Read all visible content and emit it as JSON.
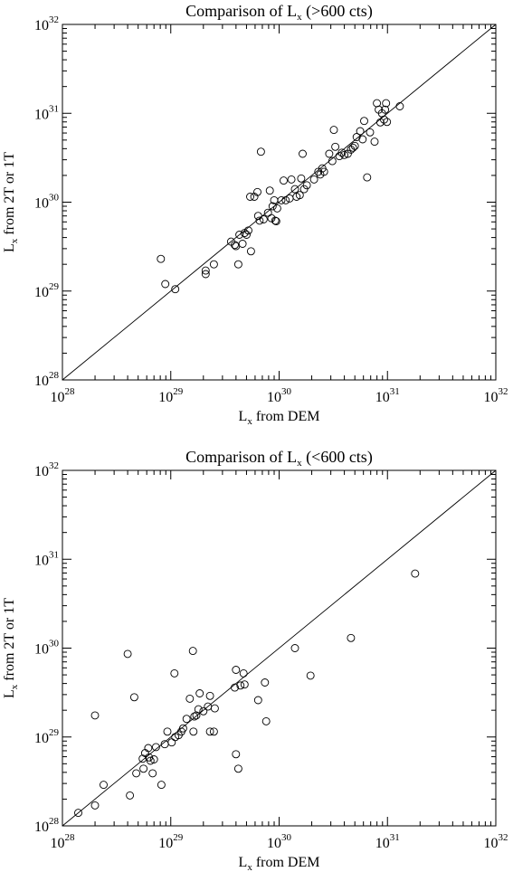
{
  "chart_data": [
    {
      "type": "scatter",
      "title": {
        "base": "Comparison of L",
        "sub": "x",
        "tail": " (>600 cts)"
      },
      "xlabel": {
        "base": "L",
        "sub": "x",
        "tail": " from DEM"
      },
      "ylabel": {
        "base": "L",
        "sub": "x",
        "tail": " from 2T or 1T"
      },
      "xscale": "log",
      "yscale": "log",
      "xlim": [
        1e+28,
        1e+32
      ],
      "ylim": [
        1e+28,
        1e+32
      ],
      "ticks": [
        {
          "base": "10",
          "exp": "28"
        },
        {
          "base": "10",
          "exp": "29"
        },
        {
          "base": "10",
          "exp": "30"
        },
        {
          "base": "10",
          "exp": "31"
        },
        {
          "base": "10",
          "exp": "32"
        }
      ],
      "reference_line": "y = x",
      "marker": "open-circle",
      "grid": false,
      "legend": "none",
      "points": [
        [
          8.1e+28,
          2.3e+29
        ],
        [
          8.9e+28,
          1.2e+29
        ],
        [
          1.1e+29,
          1.05e+29
        ],
        [
          2.1e+29,
          1.7e+29
        ],
        [
          2.1e+29,
          1.55e+29
        ],
        [
          2.5e+29,
          2e+29
        ],
        [
          3.6e+29,
          3.6e+29
        ],
        [
          3.9e+29,
          3.3e+29
        ],
        [
          4e+29,
          3.2e+29
        ],
        [
          4.2e+29,
          2e+29
        ],
        [
          4.3e+29,
          4.3e+29
        ],
        [
          4.6e+29,
          3.4e+29
        ],
        [
          4.8e+29,
          4.5e+29
        ],
        [
          5e+29,
          4.3e+29
        ],
        [
          5.2e+29,
          4.8e+29
        ],
        [
          5.5e+29,
          2.8e+29
        ],
        [
          5.4e+29,
          1.15e+30
        ],
        [
          5.9e+29,
          1.15e+30
        ],
        [
          6.3e+29,
          1.3e+30
        ],
        [
          6.4e+29,
          7e+29
        ],
        [
          6.6e+29,
          6.2e+29
        ],
        [
          6.8e+29,
          3.7e+30
        ],
        [
          7.2e+29,
          6.4e+29
        ],
        [
          7.9e+29,
          7.6e+29
        ],
        [
          8.2e+29,
          1.35e+30
        ],
        [
          8.5e+29,
          6.6e+29
        ],
        [
          8.7e+29,
          9e+29
        ],
        [
          9e+29,
          1.05e+30
        ],
        [
          9.2e+29,
          6.2e+29
        ],
        [
          9.4e+29,
          6.1e+29
        ],
        [
          9.6e+29,
          8.5e+29
        ],
        [
          1.05e+30,
          1.05e+30
        ],
        [
          1.1e+30,
          1.75e+30
        ],
        [
          1.15e+30,
          1.05e+30
        ],
        [
          1.25e+30,
          1.1e+30
        ],
        [
          1.3e+30,
          1.8e+30
        ],
        [
          1.4e+30,
          1.4e+30
        ],
        [
          1.45e+30,
          1.15e+30
        ],
        [
          1.55e+30,
          1.2e+30
        ],
        [
          1.6e+30,
          1.85e+30
        ],
        [
          1.7e+30,
          1.4e+30
        ],
        [
          1.65e+30,
          3.5e+30
        ],
        [
          1.8e+30,
          1.55e+30
        ],
        [
          2.1e+30,
          1.8e+30
        ],
        [
          2.3e+30,
          2.2e+30
        ],
        [
          2.4e+30,
          2.05e+30
        ],
        [
          2.5e+30,
          2.4e+30
        ],
        [
          2.6e+30,
          2.2e+30
        ],
        [
          2.9e+30,
          3.5e+30
        ],
        [
          3.1e+30,
          2.9e+30
        ],
        [
          3.2e+30,
          6.5e+30
        ],
        [
          3.3e+30,
          4.2e+30
        ],
        [
          3.6e+30,
          3.3e+30
        ],
        [
          3.8e+30,
          3.6e+30
        ],
        [
          4e+30,
          3.4e+30
        ],
        [
          4.3e+30,
          3.5e+30
        ],
        [
          4.6e+30,
          3.9e+30
        ],
        [
          4.8e+30,
          4.1e+30
        ],
        [
          5e+30,
          4.3e+30
        ],
        [
          5.2e+30,
          5.4e+30
        ],
        [
          5.6e+30,
          6.3e+30
        ],
        [
          5.9e+30,
          5.1e+30
        ],
        [
          6.1e+30,
          8.2e+30
        ],
        [
          6.5e+30,
          1.9e+30
        ],
        [
          6.9e+30,
          6.1e+30
        ],
        [
          7.6e+30,
          4.8e+30
        ],
        [
          8e+30,
          1.3e+31
        ],
        [
          8.3e+30,
          1.1e+31
        ],
        [
          8.6e+30,
          7.9e+30
        ],
        [
          8.9e+30,
          1e+31
        ],
        [
          9.3e+30,
          8.5e+30
        ],
        [
          9.5e+30,
          1.1e+31
        ],
        [
          9.7e+30,
          1.3e+31
        ],
        [
          9.9e+30,
          8e+30
        ],
        [
          1.3e+31,
          1.2e+31
        ]
      ]
    },
    {
      "type": "scatter",
      "title": {
        "base": "Comparison of L",
        "sub": "x",
        "tail": " (<600 cts)"
      },
      "xlabel": {
        "base": "L",
        "sub": "x",
        "tail": " from DEM"
      },
      "ylabel": {
        "base": "L",
        "sub": "x",
        "tail": " from 2T or 1T"
      },
      "xscale": "log",
      "yscale": "log",
      "xlim": [
        1e+28,
        1e+32
      ],
      "ylim": [
        1e+28,
        1e+32
      ],
      "ticks": [
        {
          "base": "10",
          "exp": "28"
        },
        {
          "base": "10",
          "exp": "29"
        },
        {
          "base": "10",
          "exp": "30"
        },
        {
          "base": "10",
          "exp": "31"
        },
        {
          "base": "10",
          "exp": "32"
        }
      ],
      "reference_line": "y = x",
      "marker": "open-circle",
      "grid": false,
      "legend": "none",
      "points": [
        [
          1.4e+28,
          1.4e+28
        ],
        [
          2e+28,
          1.7e+28
        ],
        [
          2e+28,
          1.75e+29
        ],
        [
          2.4e+28,
          2.9e+28
        ],
        [
          4.2e+28,
          2.2e+28
        ],
        [
          4e+28,
          8.6e+29
        ],
        [
          4.6e+28,
          2.8e+29
        ],
        [
          4.8e+28,
          3.9e+28
        ],
        [
          5.5e+28,
          5.7e+28
        ],
        [
          5.6e+28,
          4.4e+28
        ],
        [
          5.8e+28,
          6.6e+28
        ],
        [
          6.2e+28,
          7.5e+28
        ],
        [
          6.3e+28,
          5.9e+28
        ],
        [
          6.5e+28,
          5.4e+28
        ],
        [
          6.8e+28,
          3.9e+28
        ],
        [
          7e+28,
          5.6e+28
        ],
        [
          7.3e+28,
          7.7e+28
        ],
        [
          8.2e+28,
          2.9e+28
        ],
        [
          8.8e+28,
          8.3e+28
        ],
        [
          9.3e+28,
          1.15e+29
        ],
        [
          1.02e+29,
          8.7e+28
        ],
        [
          1.08e+29,
          5.2e+29
        ],
        [
          1.1e+29,
          1e+29
        ],
        [
          1.18e+29,
          1.05e+29
        ],
        [
          1.25e+29,
          1.15e+29
        ],
        [
          1.3e+29,
          1.25e+29
        ],
        [
          1.4e+29,
          1.6e+29
        ],
        [
          1.5e+29,
          2.7e+29
        ],
        [
          1.6e+29,
          9.3e+29
        ],
        [
          1.62e+29,
          1.15e+29
        ],
        [
          1.65e+29,
          1.7e+29
        ],
        [
          1.72e+29,
          1.75e+29
        ],
        [
          1.8e+29,
          2.05e+29
        ],
        [
          1.85e+29,
          3.1e+29
        ],
        [
          2e+29,
          1.95e+29
        ],
        [
          2.2e+29,
          2.2e+29
        ],
        [
          2.3e+29,
          2.9e+29
        ],
        [
          2.3e+29,
          1.15e+29
        ],
        [
          2.5e+29,
          1.15e+29
        ],
        [
          2.55e+29,
          2.1e+29
        ],
        [
          3.9e+29,
          3.6e+29
        ],
        [
          4e+29,
          5.7e+29
        ],
        [
          4e+29,
          6.4e+28
        ],
        [
          4.2e+29,
          4.4e+28
        ],
        [
          4.4e+29,
          3.8e+29
        ],
        [
          4.7e+29,
          5.2e+29
        ],
        [
          4.8e+29,
          3.9e+29
        ],
        [
          6.4e+29,
          2.6e+29
        ],
        [
          7.4e+29,
          4.1e+29
        ],
        [
          7.6e+29,
          1.5e+29
        ],
        [
          1.4e+30,
          1e+30
        ],
        [
          1.95e+30,
          4.9e+29
        ],
        [
          4.6e+30,
          1.3e+30
        ],
        [
          1.8e+31,
          6.9e+30
        ]
      ]
    }
  ]
}
